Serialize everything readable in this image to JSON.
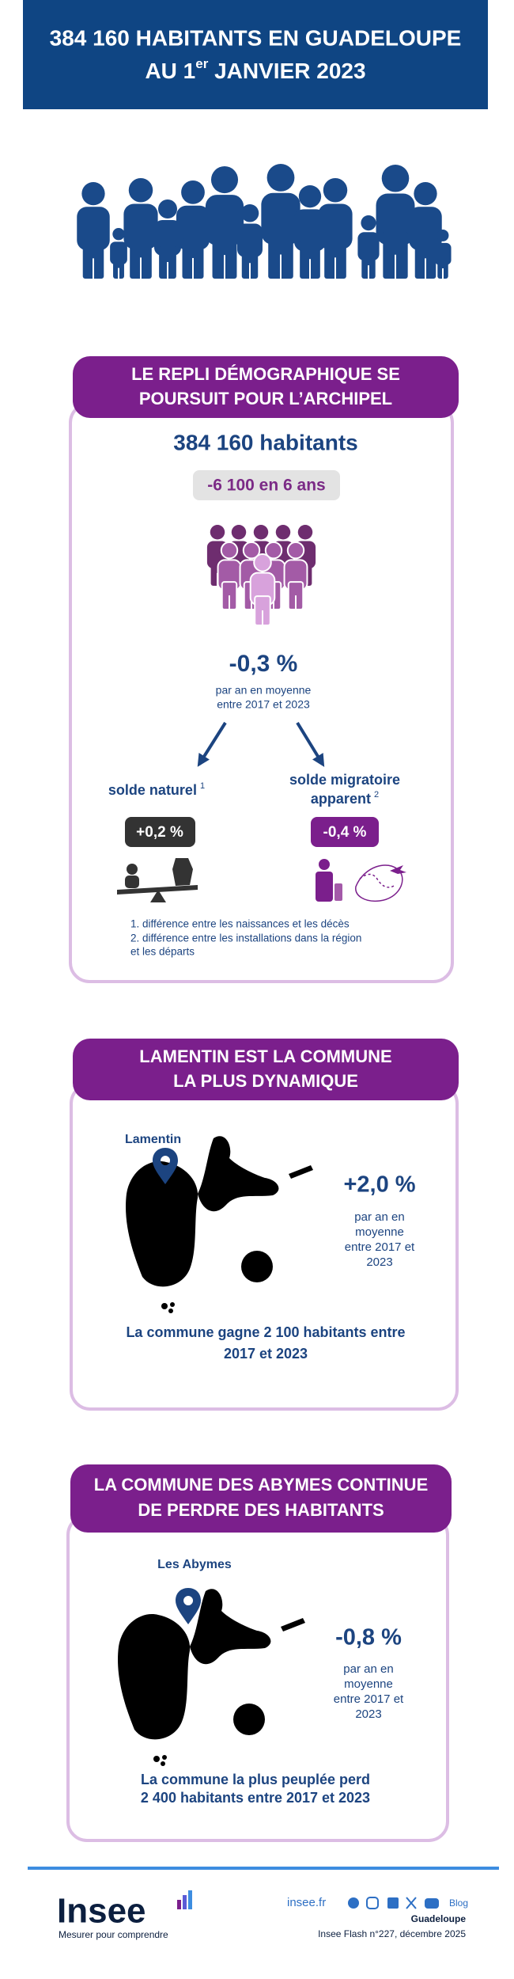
{
  "header": {
    "title_line1": "384 160 HABITANTS EN GUADELOUPE",
    "title_line2_start": "AU 1",
    "title_line2_sup": "er",
    "title_line2_end": " JANVIER 2023"
  },
  "sections": [
    {
      "title_lines": [
        "LE REPLI DÉMOGRAPHIQUE SE",
        "POURSUIT POUR L’ARCHIPEL"
      ],
      "population": "384 160 habitants",
      "change_badge": "-6 100 en 6 ans",
      "rate": "-0,3 %",
      "rate_note_lines": [
        "par an en moyenne",
        "entre 2017 et 2023"
      ],
      "components": [
        {
          "label_lines": [
            "solde naturel"
          ],
          "note_ref": "1",
          "value": "+0,2 %"
        },
        {
          "label_lines": [
            "solde migratoire",
            "apparent"
          ],
          "note_ref": "2",
          "value": "-0,4 %"
        }
      ],
      "footnotes": [
        "1. différence entre les naissances et les décès",
        "2. différence entre les installations dans la région",
        "et les départs"
      ]
    },
    {
      "title_lines": [
        "LAMENTIN EST LA COMMUNE",
        "LA PLUS DYNAMIQUE"
      ],
      "map_label": "Lamentin",
      "rate": "+2,0 %",
      "rate_note_lines": [
        "par an en",
        "moyenne",
        "entre 2017 et",
        "2023"
      ],
      "conclusion_lines": [
        "La commune gagne 2 100 habitants entre",
        "2017 et 2023"
      ]
    },
    {
      "title_lines": [
        "LA COMMUNE DES ABYMES CONTINUE",
        "DE PERDRE DES HABITANTS"
      ],
      "map_label": "Les Abymes",
      "rate": "-0,8 %",
      "rate_note_lines": [
        "par an en",
        "moyenne",
        "entre 2017 et",
        "2023"
      ],
      "conclusion_lines": [
        "La commune la plus peuplée perd",
        "2 400 habitants entre 2017 et 2023"
      ]
    }
  ],
  "footer": {
    "logo": "Insee",
    "tagline": "Mesurer pour comprendre",
    "site": "insee.fr",
    "blog": "Blog",
    "region": "Guadeloupe",
    "publication": "Insee Flash n°227, décembre 2025"
  }
}
